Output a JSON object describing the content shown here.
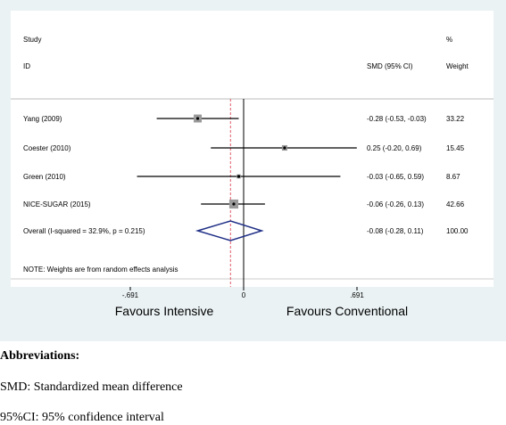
{
  "chart_data": {
    "type": "forest",
    "header": {
      "study_label": "Study",
      "id_label": "ID",
      "effect_label": "SMD (95% CI)",
      "pct_label": "%",
      "weight_label": "Weight"
    },
    "studies": [
      {
        "label": "Yang (2009)",
        "effect": -0.28,
        "lower": -0.53,
        "upper": -0.03,
        "ci_text": "-0.28 (-0.53, -0.03)",
        "weight": 33.22,
        "weight_text": "33.22"
      },
      {
        "label": "Coester (2010)",
        "effect": 0.25,
        "lower": -0.2,
        "upper": 0.69,
        "ci_text": "0.25 (-0.20, 0.69)",
        "weight": 15.45,
        "weight_text": "15.45"
      },
      {
        "label": "Green (2010)",
        "effect": -0.03,
        "lower": -0.65,
        "upper": 0.59,
        "ci_text": "-0.03 (-0.65, 0.59)",
        "weight": 8.67,
        "weight_text": "8.67"
      },
      {
        "label": "NICE-SUGAR (2015)",
        "effect": -0.06,
        "lower": -0.26,
        "upper": 0.13,
        "ci_text": "-0.06 (-0.26, 0.13)",
        "weight": 42.66,
        "weight_text": "42.66"
      }
    ],
    "overall": {
      "label": "Overall  (I-squared = 32.9%, p = 0.215)",
      "effect": -0.08,
      "lower": -0.28,
      "upper": 0.11,
      "ci_text": "-0.08 (-0.28, 0.11)",
      "weight_text": "100.00"
    },
    "note": "NOTE: Weights are from random effects analysis",
    "null_value": 0,
    "x_ticks": [
      {
        "value": -0.691,
        "label": "-.691"
      },
      {
        "value": 0,
        "label": "0"
      },
      {
        "value": 0.691,
        "label": ".691"
      }
    ],
    "xlim": [
      -0.691,
      0.691
    ],
    "left_label": "Favours Intensive",
    "right_label": "Favours Conventional",
    "colors": {
      "panel_bg": "#eaf2f3",
      "square": "#9a9a9a",
      "diamond": "#1f2f86",
      "overall_line": "#e05a6a",
      "line": "#000000"
    }
  },
  "notes": {
    "heading": "Abbreviations:",
    "smd": "SMD: Standardized mean difference",
    "ci": "95%CI: 95% confidence interval"
  }
}
